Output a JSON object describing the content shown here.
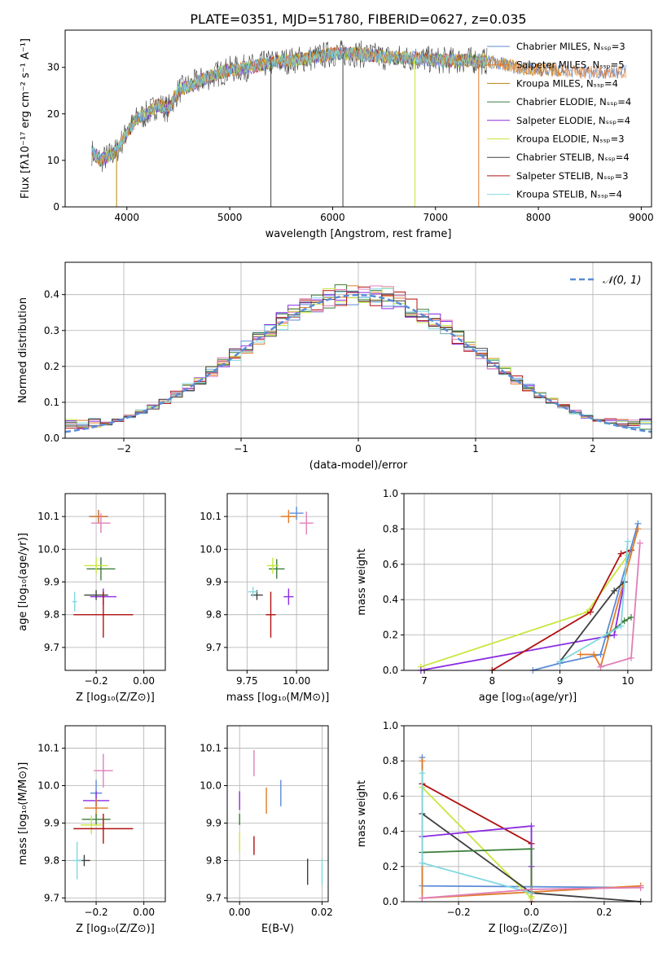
{
  "title": "PLATE=0351, MJD=51780, FIBERID=0627, z=0.035",
  "colors": {
    "c0": "#5b8bd6",
    "c1": "#e07b28",
    "c2": "#b8860b",
    "c3": "#3a7d3a",
    "c4": "#8a2be2",
    "c5": "#c8e63c",
    "c6": "#404040",
    "c7": "#b01010",
    "c8": "#7fd8e0",
    "pink": "#e07fb8",
    "grid": "#b0b0b0"
  },
  "chart_data": [
    {
      "id": "spectrum",
      "type": "line",
      "xlabel": "wavelength [Angstrom, rest frame]",
      "ylabel": "Flux [fλ10⁻¹⁷ erg cm⁻² s⁻¹ A⁻¹]",
      "xlim": [
        3400,
        9100
      ],
      "ylim": [
        0,
        38
      ],
      "xticks": [
        "4000",
        "5000",
        "6000",
        "7000",
        "8000",
        "9000"
      ],
      "yticks": [
        "0",
        "10",
        "20",
        "30"
      ],
      "legend": "top-right",
      "series": [
        {
          "name": "Chabrier MILES, N_SSP=3"
        },
        {
          "name": "Salpeter MILES, N_SSP=5"
        },
        {
          "name": "Kroupa MILES, N_SSP=4"
        },
        {
          "name": "Chabrier ELODIE, N_SSP=4"
        },
        {
          "name": "Salpeter ELODIE, N_SSP=4"
        },
        {
          "name": "Kroupa ELODIE, N_SSP=3"
        },
        {
          "name": "Chabrier STELIB, N_SSP=4"
        },
        {
          "name": "Salpeter STELIB, N_SSP=3"
        },
        {
          "name": "Kroupa STELIB, N_SSP=4"
        }
      ],
      "continuum": {
        "x": [
          3650,
          3750,
          3900,
          4000,
          4100,
          4200,
          4300,
          4400,
          4500,
          4600,
          4800,
          5000,
          5200,
          5400,
          5600,
          5800,
          6000,
          6200,
          6400,
          6600,
          6800,
          7000,
          7200,
          7400,
          7600,
          7800,
          8000,
          8200,
          8400,
          8600,
          8850
        ],
        "y": [
          12,
          10,
          12,
          16,
          19,
          20,
          22,
          21,
          25,
          26,
          28,
          29.5,
          30,
          31,
          31.5,
          32,
          33,
          33,
          32.5,
          32,
          32,
          31.5,
          31.5,
          31.5,
          31,
          30,
          29.5,
          29.5,
          29,
          29,
          29
        ]
      }
    },
    {
      "id": "residuals",
      "type": "line",
      "xlabel": "(data-model)/error",
      "ylabel": "Normed distribution",
      "xlim": [
        -2.5,
        2.5
      ],
      "ylim": [
        0,
        0.49
      ],
      "xticks": [
        "−2",
        "−1",
        "0",
        "1",
        "2"
      ],
      "yticks": [
        "0.0",
        "0.1",
        "0.2",
        "0.3",
        "0.4"
      ],
      "legend_label": "𝒩(0, 1)",
      "legend": "top-right"
    },
    {
      "id": "z_age",
      "type": "scatter",
      "xlabel": "Z [log₁₀(Z/Z⊙)]",
      "ylabel": "age  [log₁₀(age/yr)]",
      "xlim": [
        -0.33,
        0.09
      ],
      "ylim": [
        9.63,
        10.17
      ],
      "xticks": [
        "−0.2",
        "0.00"
      ],
      "xtickv": [
        -0.2,
        0.0
      ],
      "yticks": [
        "9.7",
        "9.8",
        "9.9",
        "10.0",
        "10.1"
      ],
      "ytickv": [
        9.7,
        9.8,
        9.9,
        10.0,
        10.1
      ],
      "points": [
        {
          "c": "c0",
          "x": -0.19,
          "y": 10.1,
          "ex": 0.08,
          "ey": 0.04
        },
        {
          "c": "c1",
          "x": -0.19,
          "y": 10.1,
          "ex": 0.07,
          "ey": 0.04
        },
        {
          "c": "pink",
          "x": -0.18,
          "y": 10.08,
          "ex": 0.08,
          "ey": 0.06
        },
        {
          "c": "c3",
          "x": -0.18,
          "y": 9.94,
          "ex": 0.12,
          "ey": 0.07
        },
        {
          "c": "c5",
          "x": -0.2,
          "y": 9.95,
          "ex": 0.1,
          "ey": 0.05
        },
        {
          "c": "c4",
          "x": -0.17,
          "y": 9.855,
          "ex": 0.11,
          "ey": 0.05
        },
        {
          "c": "c6",
          "x": -0.2,
          "y": 9.86,
          "ex": 0.1,
          "ey": 0.03
        },
        {
          "c": "c7",
          "x": -0.17,
          "y": 9.8,
          "ex": 0.25,
          "ey": 0.14
        },
        {
          "c": "c8",
          "x": -0.29,
          "y": 9.84,
          "ex": 0.02,
          "ey": 0.06
        }
      ]
    },
    {
      "id": "mass_age",
      "type": "scatter",
      "xlabel": "mass [log₁₀(M/M⊙)]",
      "ylabel": "",
      "xlim": [
        9.65,
        10.16
      ],
      "ylim": [
        9.63,
        10.17
      ],
      "xticks": [
        "9.75",
        "10.00"
      ],
      "xtickv": [
        9.75,
        10.0
      ],
      "yticks": [
        "9.7",
        "9.8",
        "9.9",
        "10.0",
        "10.1"
      ],
      "ytickv": [
        9.7,
        9.8,
        9.9,
        10.0,
        10.1
      ],
      "points": [
        {
          "c": "c0",
          "x": 10.0,
          "y": 10.11,
          "ex": 0.07,
          "ey": 0.04
        },
        {
          "c": "c1",
          "x": 9.96,
          "y": 10.1,
          "ex": 0.08,
          "ey": 0.04
        },
        {
          "c": "pink",
          "x": 10.05,
          "y": 10.08,
          "ex": 0.07,
          "ey": 0.07
        },
        {
          "c": "c3",
          "x": 9.9,
          "y": 9.94,
          "ex": 0.08,
          "ey": 0.06
        },
        {
          "c": "c5",
          "x": 9.88,
          "y": 9.95,
          "ex": 0.06,
          "ey": 0.05
        },
        {
          "c": "c4",
          "x": 9.96,
          "y": 9.855,
          "ex": 0.05,
          "ey": 0.05
        },
        {
          "c": "c6",
          "x": 9.8,
          "y": 9.86,
          "ex": 0.06,
          "ey": 0.03
        },
        {
          "c": "c7",
          "x": 9.87,
          "y": 9.8,
          "ex": 0.05,
          "ey": 0.14
        },
        {
          "c": "c8",
          "x": 9.78,
          "y": 9.87,
          "ex": 0.05,
          "ey": 0.03
        }
      ]
    },
    {
      "id": "weight_age",
      "type": "line",
      "xlabel": "age  [log₁₀(age/yr)]",
      "ylabel": "mass weight",
      "xlim": [
        6.7,
        10.35
      ],
      "ylim": [
        0,
        1.0
      ],
      "xticks": [
        "7",
        "8",
        "9",
        "10"
      ],
      "xtickv": [
        7,
        8,
        9,
        10
      ],
      "yticks": [
        "0.0",
        "0.2",
        "0.4",
        "0.6",
        "0.8",
        "1.0"
      ],
      "ytickv": [
        0,
        0.2,
        0.4,
        0.6,
        0.8,
        1.0
      ],
      "series": [
        {
          "c": "c5",
          "x": [
            6.95,
            9.4,
            10.0
          ],
          "y": [
            0.02,
            0.33,
            0.65
          ]
        },
        {
          "c": "c4",
          "x": [
            6.95,
            9.8,
            9.95
          ],
          "y": [
            0.0,
            0.2,
            0.5
          ]
        },
        {
          "c": "c7",
          "x": [
            8.0,
            9.45,
            9.9,
            10.05
          ],
          "y": [
            0.0,
            0.33,
            0.66,
            0.68
          ]
        },
        {
          "c": "c0",
          "x": [
            8.6,
            9.0,
            9.6,
            10.15
          ],
          "y": [
            0.0,
            0.04,
            0.09,
            0.83
          ]
        },
        {
          "c": "c1",
          "x": [
            9.3,
            9.5,
            9.6,
            10.15
          ],
          "y": [
            0.09,
            0.09,
            0.02,
            0.8
          ]
        },
        {
          "c": "c6",
          "x": [
            9.0,
            9.8,
            9.95
          ],
          "y": [
            0.05,
            0.45,
            0.5
          ]
        },
        {
          "c": "c3",
          "x": [
            9.7,
            9.95,
            10.05
          ],
          "y": [
            0.2,
            0.28,
            0.3
          ]
        },
        {
          "c": "c8",
          "x": [
            9.0,
            9.9,
            10.0
          ],
          "y": [
            0.05,
            0.25,
            0.73
          ]
        },
        {
          "c": "pink",
          "x": [
            9.6,
            10.05,
            10.18
          ],
          "y": [
            0.02,
            0.07,
            0.72
          ]
        }
      ]
    },
    {
      "id": "z_mass",
      "type": "scatter",
      "xlabel": "Z [log₁₀(Z/Z⊙)]",
      "ylabel": "mass [log₁₀(M/M⊙)]",
      "xlim": [
        -0.33,
        0.09
      ],
      "ylim": [
        9.69,
        10.16
      ],
      "xticks": [
        "−0.2",
        "0.00"
      ],
      "xtickv": [
        -0.2,
        0.0
      ],
      "yticks": [
        "9.7",
        "9.8",
        "9.9",
        "10.0",
        "10.1"
      ],
      "ytickv": [
        9.7,
        9.8,
        9.9,
        10.0,
        10.1
      ],
      "points": [
        {
          "c": "pink",
          "x": -0.17,
          "y": 10.04,
          "ex": 0.08,
          "ey": 0.09
        },
        {
          "c": "c0",
          "x": -0.2,
          "y": 9.98,
          "ex": 0.05,
          "ey": 0.07
        },
        {
          "c": "c4",
          "x": -0.2,
          "y": 9.96,
          "ex": 0.11,
          "ey": 0.05
        },
        {
          "c": "c1",
          "x": -0.2,
          "y": 9.94,
          "ex": 0.1,
          "ey": 0.05
        },
        {
          "c": "c3",
          "x": -0.2,
          "y": 9.91,
          "ex": 0.12,
          "ey": 0.03
        },
        {
          "c": "c5",
          "x": -0.22,
          "y": 9.895,
          "ex": 0.09,
          "ey": 0.05
        },
        {
          "c": "c7",
          "x": -0.17,
          "y": 9.885,
          "ex": 0.25,
          "ey": 0.08
        },
        {
          "c": "c6",
          "x": -0.25,
          "y": 9.8,
          "ex": 0.05,
          "ey": 0.03
        },
        {
          "c": "c8",
          "x": -0.28,
          "y": 9.8,
          "ex": 0.04,
          "ey": 0.1
        }
      ]
    },
    {
      "id": "ebv_mass",
      "type": "scatter",
      "xlabel": "E(B-V)",
      "ylabel": "",
      "xlim": [
        -0.003,
        0.0215
      ],
      "ylim": [
        9.69,
        10.16
      ],
      "xticks": [
        "0.00",
        "0.02"
      ],
      "xtickv": [
        0.0,
        0.02
      ],
      "yticks": [
        "9.7",
        "9.8",
        "9.9",
        "10.0",
        "10.1"
      ],
      "ytickv": [
        9.7,
        9.8,
        9.9,
        10.0,
        10.1
      ],
      "points": [
        {
          "c": "pink",
          "x": 0.0035,
          "y": 10.06,
          "ex": 0,
          "ey": 0.07
        },
        {
          "c": "c0",
          "x": 0.01,
          "y": 9.98,
          "ex": 0,
          "ey": 0.07
        },
        {
          "c": "c4",
          "x": 0.0,
          "y": 9.96,
          "ex": 0,
          "ey": 0.05
        },
        {
          "c": "c1",
          "x": 0.0065,
          "y": 9.96,
          "ex": 0,
          "ey": 0.07
        },
        {
          "c": "c3",
          "x": 0.0,
          "y": 9.91,
          "ex": 0,
          "ey": 0.03
        },
        {
          "c": "c5",
          "x": 0.0,
          "y": 9.85,
          "ex": 0,
          "ey": 0.05
        },
        {
          "c": "c7",
          "x": 0.0035,
          "y": 9.84,
          "ex": 0,
          "ey": 0.05
        },
        {
          "c": "c6",
          "x": 0.0165,
          "y": 9.77,
          "ex": 0,
          "ey": 0.07
        },
        {
          "c": "c8",
          "x": 0.02,
          "y": 9.77,
          "ex": 0,
          "ey": 0.07
        }
      ]
    },
    {
      "id": "weight_z",
      "type": "line",
      "xlabel": "Z [log₁₀(Z/Z⊙)]",
      "ylabel": "mass weight",
      "xlim": [
        -0.35,
        0.33
      ],
      "ylim": [
        0,
        1.0
      ],
      "xticks": [
        "−0.2",
        "0.0",
        "0.2"
      ],
      "xtickv": [
        -0.2,
        0.0,
        0.2
      ],
      "yticks": [
        "0.0",
        "0.2",
        "0.4",
        "0.6",
        "0.8",
        "1.0"
      ],
      "ytickv": [
        0,
        0.2,
        0.4,
        0.6,
        0.8,
        1.0
      ],
      "series": [
        {
          "c": "c0",
          "x": [
            -0.3,
            -0.3,
            0.3
          ],
          "y": [
            0.82,
            0.09,
            0.08
          ]
        },
        {
          "c": "c1",
          "x": [
            -0.3,
            -0.3,
            0.3
          ],
          "y": [
            0.8,
            0.02,
            0.09
          ]
        },
        {
          "c": "c7",
          "x": [
            -0.3,
            0.0,
            0.0
          ],
          "y": [
            0.67,
            0.33,
            0.0
          ]
        },
        {
          "c": "c5",
          "x": [
            -0.3,
            0.0,
            0.0
          ],
          "y": [
            0.65,
            0.02,
            0.03
          ]
        },
        {
          "c": "c6",
          "x": [
            -0.3,
            0.0,
            0.3
          ],
          "y": [
            0.5,
            0.05,
            0.0
          ]
        },
        {
          "c": "c4",
          "x": [
            -0.3,
            0.0,
            0.0
          ],
          "y": [
            0.37,
            0.43,
            0.2
          ]
        },
        {
          "c": "c3",
          "x": [
            -0.3,
            0.0,
            0.0
          ],
          "y": [
            0.28,
            0.3,
            0.05
          ]
        },
        {
          "c": "c8",
          "x": [
            -0.3,
            -0.3,
            0.0
          ],
          "y": [
            0.73,
            0.22,
            0.05
          ]
        },
        {
          "c": "pink",
          "x": [
            -0.3,
            0.0,
            0.3
          ],
          "y": [
            0.02,
            0.07,
            0.08
          ]
        }
      ]
    }
  ]
}
